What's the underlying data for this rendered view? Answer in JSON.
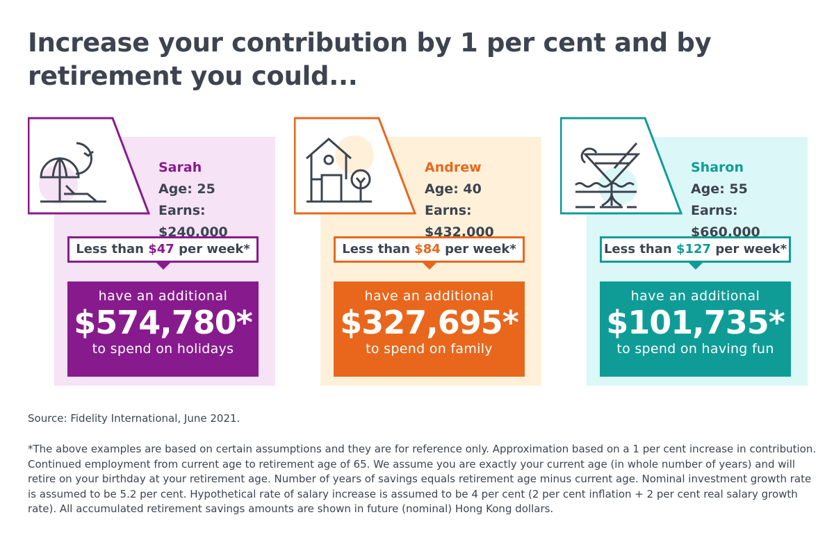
{
  "title": "Increase your contribution by 1 per cent and by retirement you could...",
  "colors": {
    "text": "#3d4450",
    "purple": "#871b8d",
    "purple_light": "#f6e3f6",
    "orange": "#e8671c",
    "orange_light": "#fff1d9",
    "teal": "#0f9c97",
    "teal_light": "#dcf7f7"
  },
  "cards": [
    {
      "icon": "beach-umbrella-icon",
      "name": "Sarah",
      "age": "Age: 25",
      "earns": "Earns: $240,000",
      "less_prefix": "Less than ",
      "weekly": "$47",
      "less_suffix": " per week*",
      "line1": "have an additional",
      "amount": "$574,780*",
      "line3": "to spend on holidays"
    },
    {
      "icon": "house-icon",
      "name": "Andrew",
      "age": "Age: 40",
      "earns": "Earns: $432,000",
      "less_prefix": "Less than ",
      "weekly": "$84",
      "less_suffix": " per week*",
      "line1": "have an additional",
      "amount": "$327,695*",
      "line3": "to spend on family"
    },
    {
      "icon": "cocktail-icon",
      "name": "Sharon",
      "age": "Age: 55",
      "earns": "Earns: $660,000",
      "less_prefix": "Less than ",
      "weekly": "$127",
      "less_suffix": " per week*",
      "line1": "have an additional",
      "amount": "$101,735*",
      "line3": "to spend on having fun"
    }
  ],
  "source": "Source: Fidelity International, June 2021.",
  "footnote": "*The above examples are based on certain assumptions and they are for reference only. Approximation based on a 1 per cent increase in contribution. Continued employment from current age to retirement age of 65. We assume you are exactly your current age (in whole number of years) and will retire on your birthday at your retirement age. Number of years of savings equals retirement age minus current age. Nominal investment growth rate is assumed to be 5.2 per cent. Hypothetical rate of salary increase is assumed to be 4 per cent (2 per cent inflation + 2 per cent real salary growth rate). All accumulated retirement savings amounts are shown in future (nominal) Hong Kong dollars."
}
